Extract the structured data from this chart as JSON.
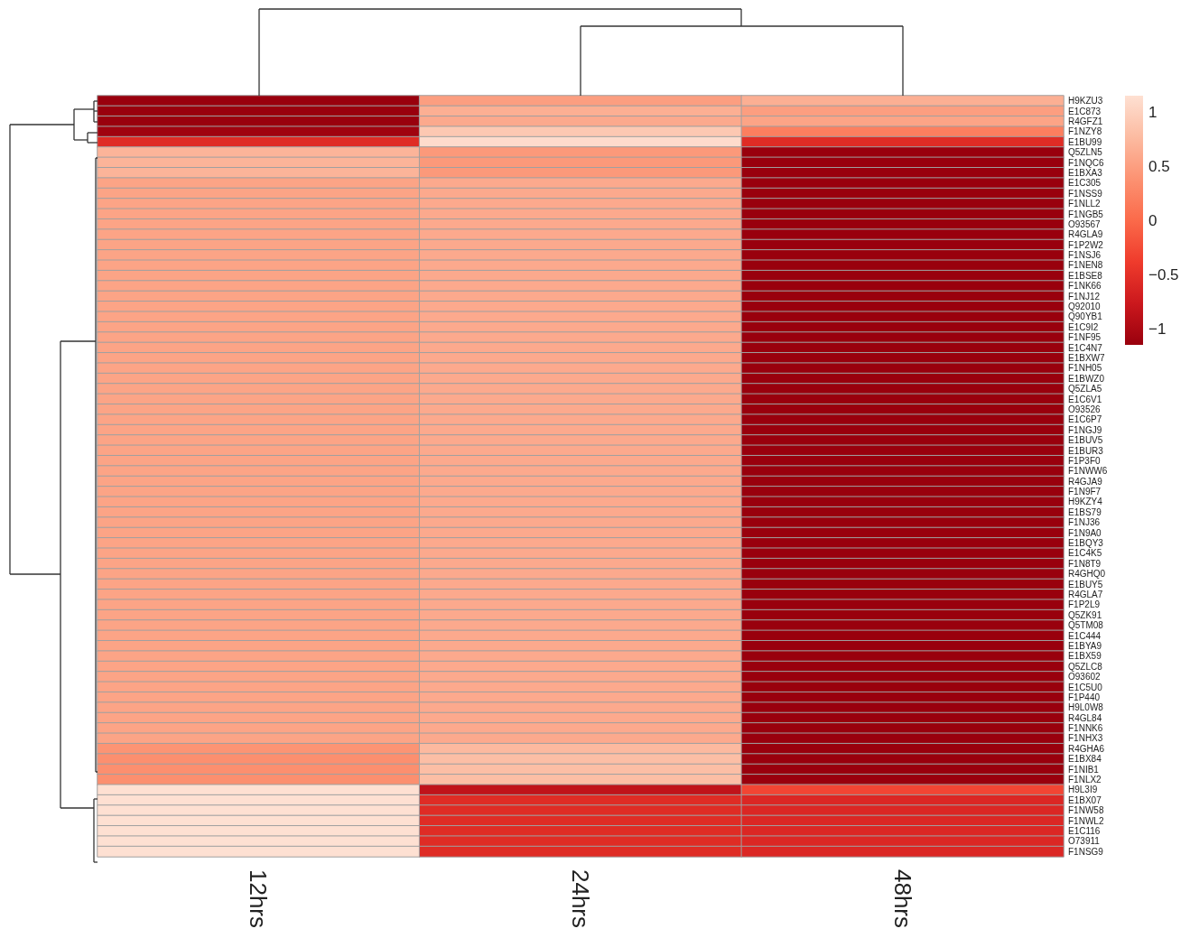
{
  "chart_data": {
    "type": "heatmap",
    "categories": [
      "12hrs",
      "24hrs",
      "48hrs"
    ],
    "y_categories": [
      "H9KZU3",
      "E1C873",
      "R4GFZ1",
      "F1NZY8",
      "E1BU99",
      "Q5ZLN5",
      "F1NQC6",
      "E1BXA3",
      "E1C305",
      "F1NSS9",
      "F1NLL2",
      "F1NGB5",
      "O93567",
      "R4GLA9",
      "F1P2W2",
      "F1NSJ6",
      "F1NEN8",
      "E1BSE8",
      "F1NK66",
      "F1NJ12",
      "Q92010",
      "Q90YB1",
      "E1C9I2",
      "F1NF95",
      "E1C4N7",
      "E1BXW7",
      "F1NH05",
      "E1BWZ0",
      "Q5ZLA5",
      "E1C6V1",
      "O93526",
      "E1C6P7",
      "F1NGJ9",
      "E1BUV5",
      "E1BUR3",
      "F1P3F0",
      "F1NWW6",
      "R4GJA9",
      "F1N9F7",
      "H9KZY4",
      "E1BS79",
      "F1NJ36",
      "F1N9A0",
      "E1BQY3",
      "E1C4K5",
      "F1N8T9",
      "R4GHQ0",
      "E1BUY5",
      "R4GLA7",
      "F1P2L9",
      "Q5ZK91",
      "Q5TM08",
      "E1C444",
      "E1BYA9",
      "E1BX59",
      "Q5ZLC8",
      "O93602",
      "E1C5U0",
      "F1P440",
      "H9L0W8",
      "R4GL84",
      "F1NNK6",
      "F1NHX3",
      "R4GHA6",
      "E1BX84",
      "F1NIB1",
      "F1NLX2",
      "H9L3I9",
      "E1BX07",
      "F1NW58",
      "F1NWL2",
      "E1C116",
      "O73911",
      "F1NSG9"
    ],
    "cells": [
      [
        -1.15,
        0.5,
        0.65
      ],
      [
        -1.15,
        0.65,
        0.5
      ],
      [
        -1.15,
        0.6,
        0.55
      ],
      [
        -1.1,
        0.9,
        0.2
      ],
      [
        -0.55,
        1.1,
        -0.55
      ],
      [
        0.7,
        0.45,
        -1.15
      ],
      [
        0.7,
        0.45,
        -1.15
      ],
      [
        0.7,
        0.45,
        -1.15
      ],
      [
        0.55,
        0.6,
        -1.15
      ],
      [
        0.55,
        0.6,
        -1.15
      ],
      [
        0.55,
        0.6,
        -1.15
      ],
      [
        0.55,
        0.6,
        -1.15
      ],
      [
        0.55,
        0.6,
        -1.15
      ],
      [
        0.55,
        0.6,
        -1.15
      ],
      [
        0.55,
        0.6,
        -1.15
      ],
      [
        0.55,
        0.6,
        -1.15
      ],
      [
        0.55,
        0.6,
        -1.15
      ],
      [
        0.55,
        0.6,
        -1.15
      ],
      [
        0.55,
        0.6,
        -1.15
      ],
      [
        0.55,
        0.6,
        -1.15
      ],
      [
        0.55,
        0.6,
        -1.15
      ],
      [
        0.55,
        0.6,
        -1.15
      ],
      [
        0.55,
        0.6,
        -1.15
      ],
      [
        0.55,
        0.6,
        -1.15
      ],
      [
        0.55,
        0.6,
        -1.15
      ],
      [
        0.55,
        0.6,
        -1.15
      ],
      [
        0.55,
        0.6,
        -1.15
      ],
      [
        0.55,
        0.6,
        -1.15
      ],
      [
        0.55,
        0.6,
        -1.15
      ],
      [
        0.55,
        0.6,
        -1.15
      ],
      [
        0.55,
        0.6,
        -1.15
      ],
      [
        0.55,
        0.6,
        -1.15
      ],
      [
        0.55,
        0.6,
        -1.15
      ],
      [
        0.55,
        0.6,
        -1.15
      ],
      [
        0.55,
        0.6,
        -1.15
      ],
      [
        0.55,
        0.6,
        -1.15
      ],
      [
        0.55,
        0.6,
        -1.15
      ],
      [
        0.55,
        0.6,
        -1.15
      ],
      [
        0.55,
        0.6,
        -1.15
      ],
      [
        0.55,
        0.6,
        -1.15
      ],
      [
        0.55,
        0.6,
        -1.15
      ],
      [
        0.55,
        0.6,
        -1.15
      ],
      [
        0.55,
        0.6,
        -1.15
      ],
      [
        0.55,
        0.6,
        -1.15
      ],
      [
        0.55,
        0.6,
        -1.15
      ],
      [
        0.55,
        0.6,
        -1.15
      ],
      [
        0.55,
        0.6,
        -1.15
      ],
      [
        0.55,
        0.6,
        -1.15
      ],
      [
        0.55,
        0.6,
        -1.15
      ],
      [
        0.55,
        0.6,
        -1.15
      ],
      [
        0.55,
        0.6,
        -1.15
      ],
      [
        0.55,
        0.6,
        -1.15
      ],
      [
        0.55,
        0.6,
        -1.15
      ],
      [
        0.55,
        0.6,
        -1.15
      ],
      [
        0.55,
        0.6,
        -1.15
      ],
      [
        0.55,
        0.6,
        -1.15
      ],
      [
        0.55,
        0.6,
        -1.15
      ],
      [
        0.55,
        0.6,
        -1.15
      ],
      [
        0.55,
        0.6,
        -1.15
      ],
      [
        0.55,
        0.6,
        -1.15
      ],
      [
        0.55,
        0.6,
        -1.15
      ],
      [
        0.55,
        0.6,
        -1.15
      ],
      [
        0.55,
        0.6,
        -1.15
      ],
      [
        0.4,
        0.75,
        -1.15
      ],
      [
        0.35,
        0.8,
        -1.15
      ],
      [
        0.35,
        0.8,
        -1.15
      ],
      [
        0.35,
        0.8,
        -1.15
      ],
      [
        1.15,
        -0.85,
        -0.3
      ],
      [
        1.15,
        -0.55,
        -0.6
      ],
      [
        1.15,
        -0.55,
        -0.6
      ],
      [
        1.15,
        -0.55,
        -0.6
      ],
      [
        1.15,
        -0.55,
        -0.6
      ],
      [
        1.15,
        -0.55,
        -0.6
      ],
      [
        1.15,
        -0.55,
        -0.6
      ]
    ],
    "clim": [
      -1.15,
      1.15
    ],
    "cticks": [
      {
        "value": -1,
        "label": "−1"
      },
      {
        "value": -0.5,
        "label": "−0.5"
      },
      0,
      0.5,
      1
    ]
  }
}
